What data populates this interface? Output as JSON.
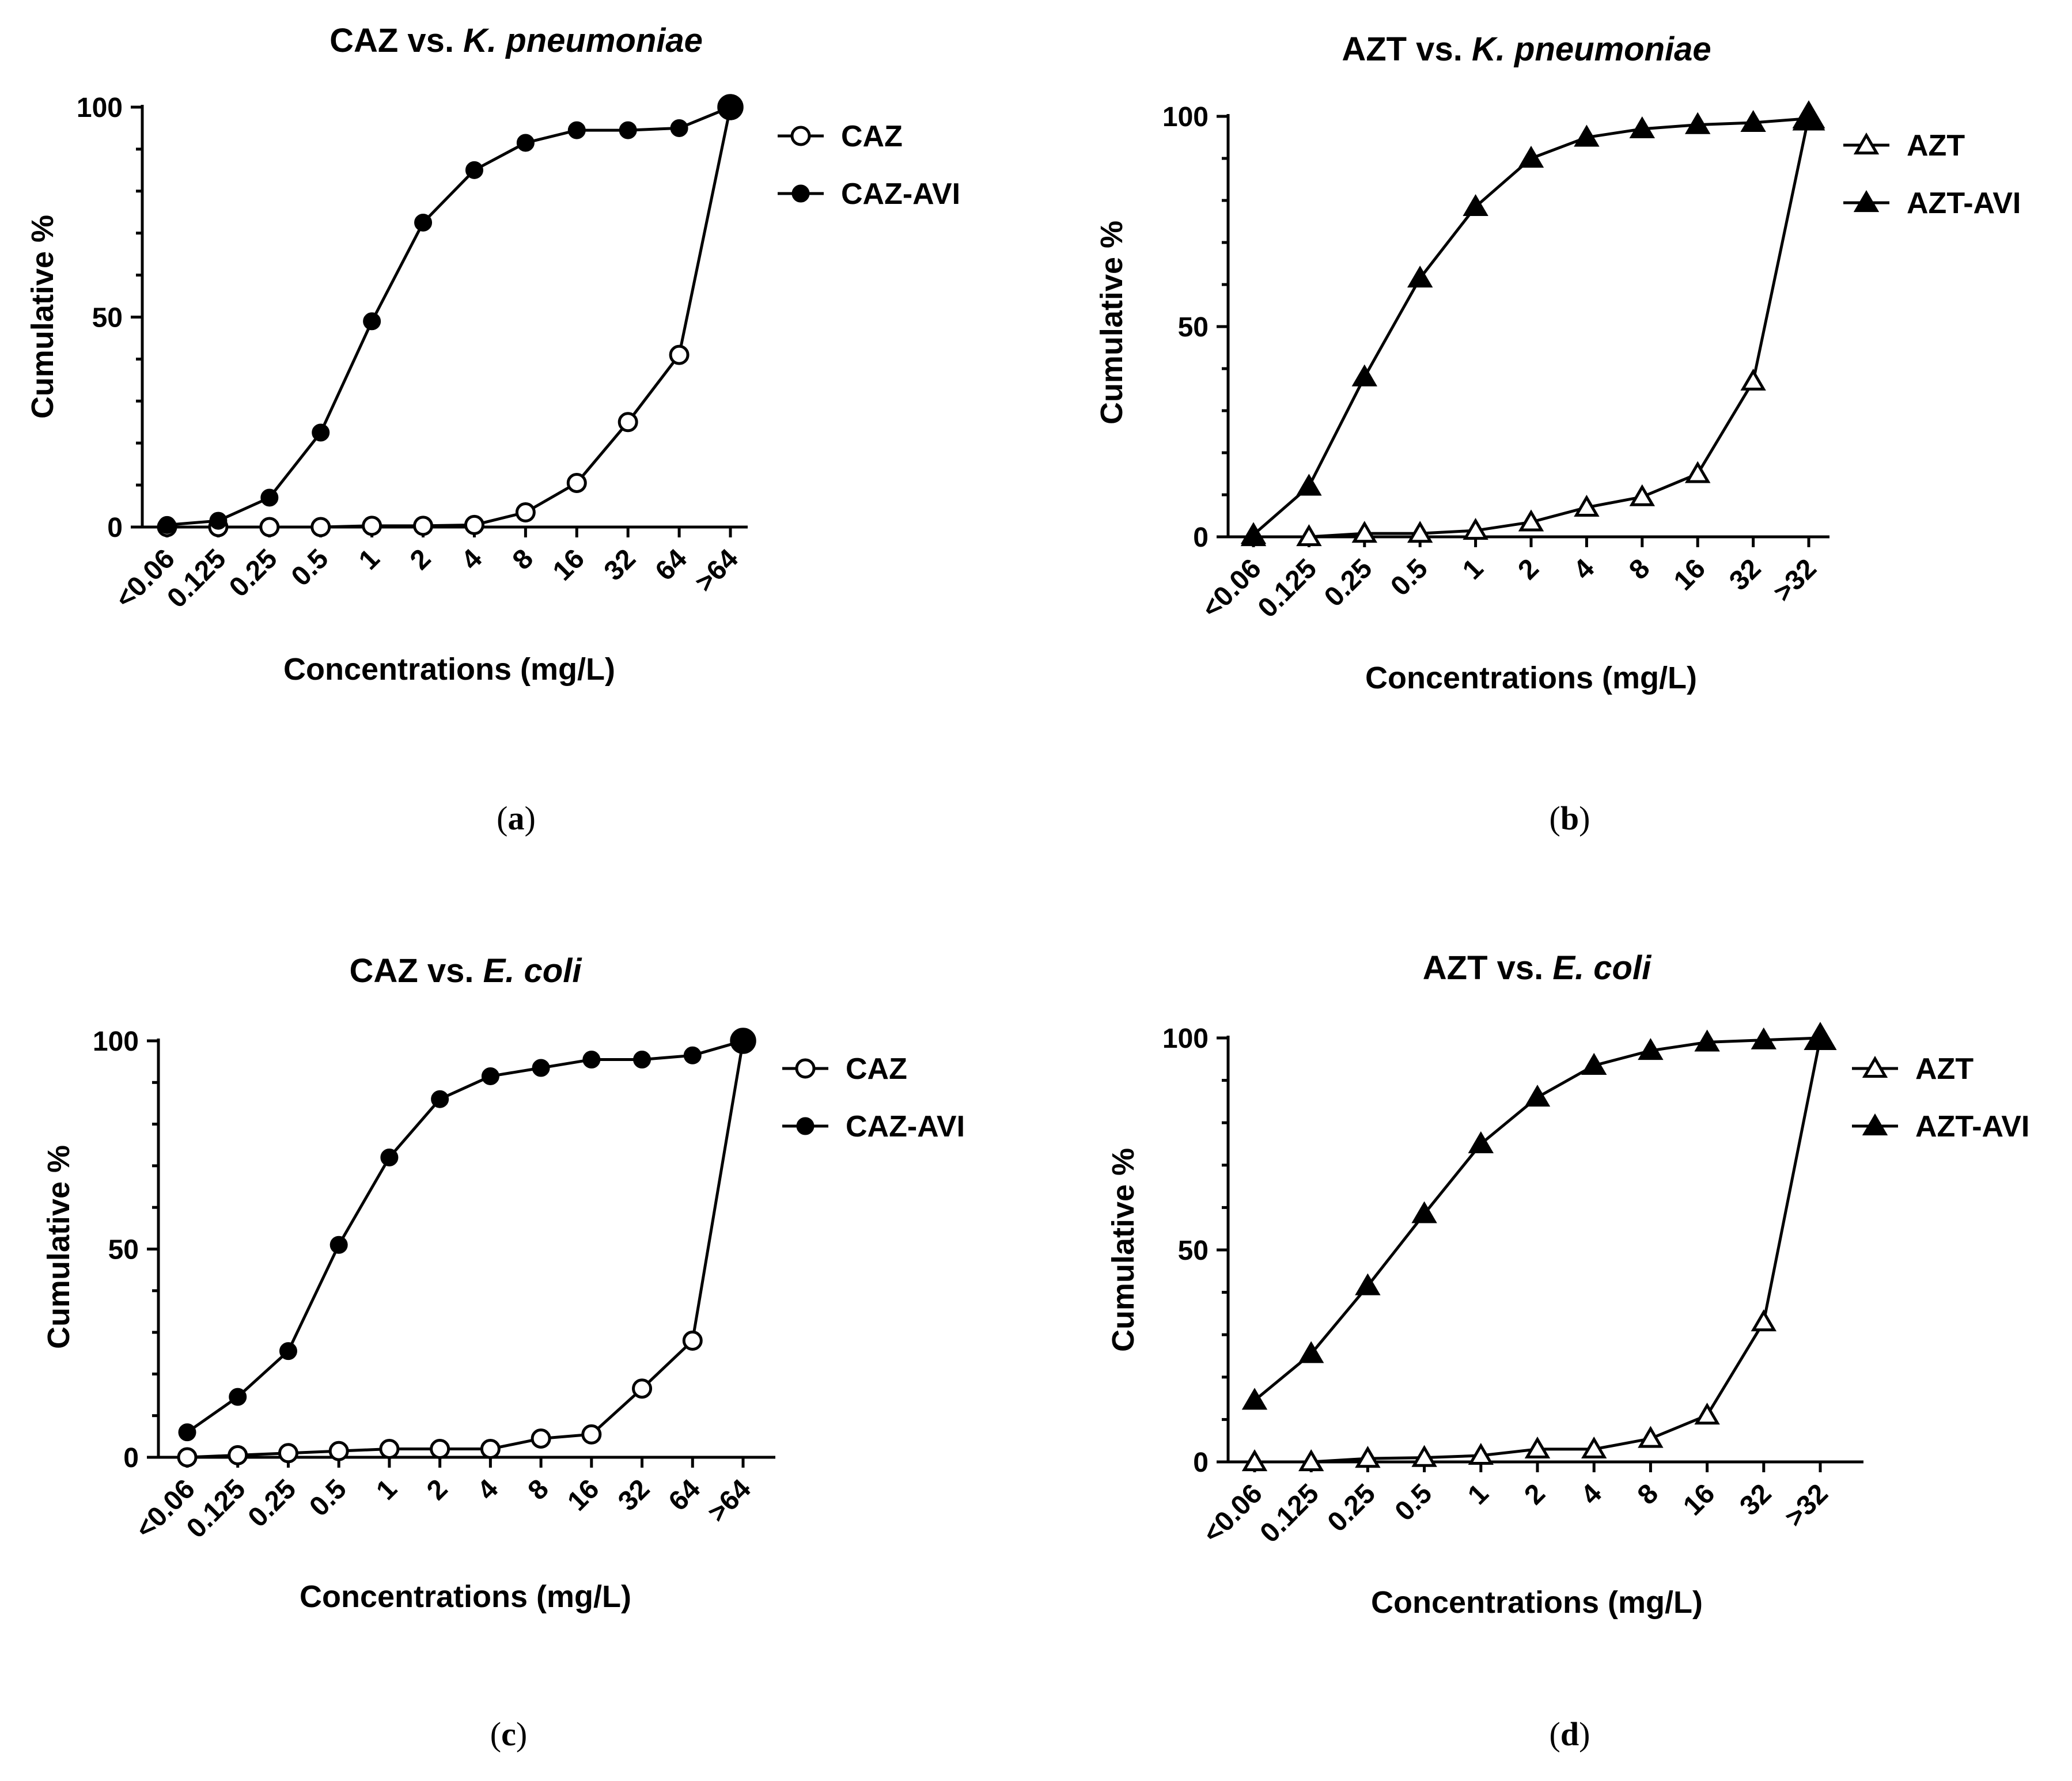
{
  "chart_data": [
    {
      "type": "line",
      "panel": "(a)",
      "panel_letter": "a",
      "title_main": "CAZ vs. ",
      "title_italic": "K. pneumoniae",
      "xlabel": "Concentrations (mg/L)",
      "ylabel": "Cumulative %",
      "ylim": [
        0,
        100
      ],
      "yticks": [
        0,
        50,
        100
      ],
      "categories": [
        "<0.06",
        "0.125",
        "0.25",
        "0.5",
        "1",
        "2",
        "4",
        "8",
        "16",
        "32",
        "64",
        ">64"
      ],
      "series": [
        {
          "name": "CAZ",
          "marker": "open-circle",
          "values": [
            0,
            0,
            0,
            0,
            0.3,
            0.3,
            0.5,
            3.5,
            10.5,
            25,
            41,
            100
          ]
        },
        {
          "name": "CAZ-AVI",
          "marker": "filled-circle",
          "values": [
            0.5,
            1.5,
            7,
            22.5,
            49,
            72.5,
            85,
            91.5,
            94.5,
            94.5,
            95,
            100
          ]
        }
      ]
    },
    {
      "type": "line",
      "panel": "(b)",
      "panel_letter": "b",
      "title_main": "AZT vs. ",
      "title_italic": "K. pneumoniae",
      "xlabel": "Concentrations (mg/L)",
      "ylabel": "Cumulative %",
      "ylim": [
        0,
        100
      ],
      "yticks": [
        0,
        50,
        100
      ],
      "categories": [
        "<0.06",
        "0.125",
        "0.25",
        "0.5",
        "1",
        "2",
        "4",
        "8",
        "16",
        "32",
        ">32"
      ],
      "series": [
        {
          "name": "AZT",
          "marker": "open-triangle",
          "values": [
            0,
            0,
            0.8,
            0.8,
            1.5,
            3.5,
            7,
            9.5,
            15,
            37,
            100
          ]
        },
        {
          "name": "AZT-AVI",
          "marker": "filled-triangle",
          "values": [
            0.5,
            12,
            38,
            61.5,
            78.5,
            90,
            95,
            97,
            98,
            98.5,
            99.5
          ]
        }
      ]
    },
    {
      "type": "line",
      "panel": "(c)",
      "panel_letter": "c",
      "title_main": "CAZ vs. ",
      "title_italic": "E. coli",
      "xlabel": "Concentrations (mg/L)",
      "ylabel": "Cumulative %",
      "ylim": [
        0,
        100
      ],
      "yticks": [
        0,
        50,
        100
      ],
      "categories": [
        "<0.06",
        "0.125",
        "0.25",
        "0.5",
        "1",
        "2",
        "4",
        "8",
        "16",
        "32",
        "64",
        ">64"
      ],
      "series": [
        {
          "name": "CAZ",
          "marker": "open-circle",
          "values": [
            0,
            0.5,
            1,
            1.5,
            2,
            2,
            2,
            4.5,
            5.5,
            16.5,
            28,
            100
          ]
        },
        {
          "name": "CAZ-AVI",
          "marker": "filled-circle",
          "values": [
            6,
            14.5,
            25.5,
            51,
            72,
            86,
            91.5,
            93.5,
            95.5,
            95.5,
            96.5,
            100
          ]
        }
      ]
    },
    {
      "type": "line",
      "panel": "(d)",
      "panel_letter": "d",
      "title_main": "AZT vs. ",
      "title_italic": "E. coli",
      "xlabel": "Concentrations (mg/L)",
      "ylabel": "Cumulative %",
      "ylim": [
        0,
        100
      ],
      "yticks": [
        0,
        50,
        100
      ],
      "categories": [
        "<0.06",
        "0.125",
        "0.25",
        "0.5",
        "1",
        "2",
        "4",
        "8",
        "16",
        "32",
        ">32"
      ],
      "series": [
        {
          "name": "AZT",
          "marker": "open-triangle",
          "values": [
            0,
            0,
            0.8,
            1,
            1.5,
            3,
            3,
            5.5,
            11,
            33,
            100
          ]
        },
        {
          "name": "AZT-AVI",
          "marker": "filled-triangle",
          "values": [
            14.5,
            25.5,
            41.5,
            58.5,
            75,
            86,
            93.5,
            97,
            99,
            99.5,
            100
          ]
        }
      ]
    }
  ]
}
